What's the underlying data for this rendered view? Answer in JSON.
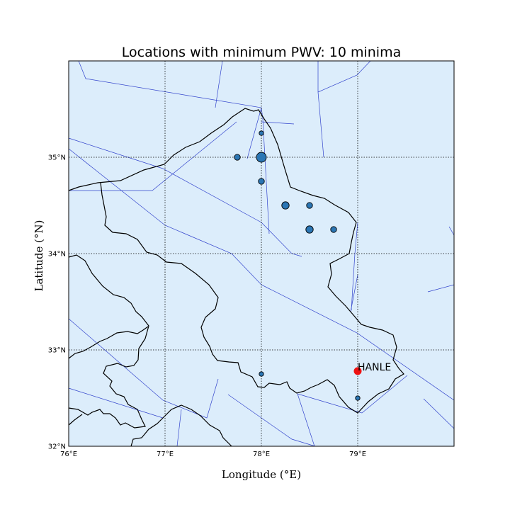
{
  "title": "Locations with minimum PWV: 10 minima",
  "xlabel": "Longitude (°E)",
  "ylabel": "Latitude (°N)",
  "x_ticks": [
    {
      "value": 76,
      "label": "76°E"
    },
    {
      "value": 77,
      "label": "77°E"
    },
    {
      "value": 78,
      "label": "78°E"
    },
    {
      "value": 79,
      "label": "79°E"
    }
  ],
  "y_ticks": [
    {
      "value": 32,
      "label": "32°N"
    },
    {
      "value": 33,
      "label": "33°N"
    },
    {
      "value": 34,
      "label": "34°N"
    },
    {
      "value": 35,
      "label": "35°N"
    }
  ],
  "colors": {
    "ocean_fill": "#dcedfb",
    "boundary": "#000000",
    "river": "#3344cc",
    "minima_marker": "#2b76b4",
    "site_marker": "#ee1111"
  },
  "chart_data": {
    "type": "scatter",
    "xlim": [
      76,
      80
    ],
    "ylim": [
      32,
      36
    ],
    "grid": true,
    "minima": [
      {
        "lon": 78.0,
        "lat": 35.25,
        "size": 1
      },
      {
        "lon": 77.75,
        "lat": 35.0,
        "size": 2
      },
      {
        "lon": 78.0,
        "lat": 35.0,
        "size": 4
      },
      {
        "lon": 78.0,
        "lat": 34.75,
        "size": 2
      },
      {
        "lon": 78.25,
        "lat": 34.5,
        "size": 3
      },
      {
        "lon": 78.5,
        "lat": 34.5,
        "size": 2
      },
      {
        "lon": 78.5,
        "lat": 34.25,
        "size": 3
      },
      {
        "lon": 78.75,
        "lat": 34.25,
        "size": 2
      },
      {
        "lon": 78.0,
        "lat": 32.75,
        "size": 1
      },
      {
        "lon": 79.0,
        "lat": 32.5,
        "size": 1
      }
    ],
    "site": {
      "name": "HANLE",
      "lon": 79.0,
      "lat": 32.78
    }
  }
}
